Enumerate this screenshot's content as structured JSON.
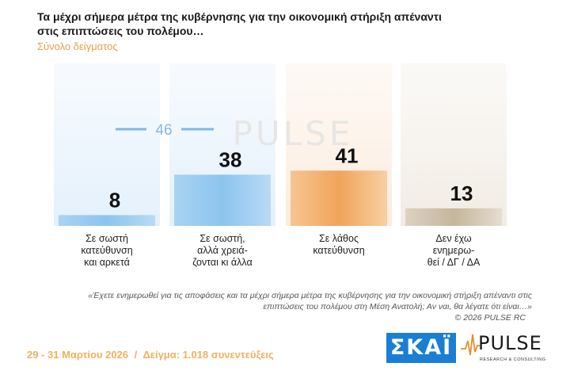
{
  "header": {
    "title": "Τα μέχρι σήμερα μέτρα της κυβέρνησης για την οικονομική στήριξη απέναντι στις επιπτώσεις του πολέμου…",
    "subtitle": "Σύνολο δείγματος"
  },
  "chart_data": {
    "type": "bar",
    "categories": [
      [
        "Σε σωστή",
        "κατεύθυνση",
        "και αρκετά"
      ],
      [
        "Σε σωστή,",
        "αλλά χρειά-",
        "ζονται κι άλλα"
      ],
      [
        "Σε λάθος",
        "κατεύθυνση"
      ],
      [
        "Δεν έχω",
        "ενημερω-",
        "θεί / ΔΓ / ΔΑ"
      ]
    ],
    "values": [
      8,
      38,
      41,
      13
    ],
    "bracket": {
      "value": 46,
      "spans": [
        0,
        1
      ]
    },
    "colors": [
      "#8cc4ee",
      "#8cc4ee",
      "#f0a45a",
      "#cdbfa8"
    ]
  },
  "note": {
    "question": "«Έχετε ενημερωθεί για τις αποφάσεις και τα μέχρι σήμερα  μέτρα της κυβέρνησης για την οικονομική στήριξη απέναντι στις επιπτώσεις του πολέμου στη Μέση Ανατολή; Αν ναι, θα λέγατε ότι είναι…»",
    "copyright": "©  2026  PULSE RC"
  },
  "footer": {
    "dates": "29 - 31  Μαρτίου 2026",
    "separator": "/",
    "sample": "Δείγμα:  1.018 συνεντεύξεις"
  },
  "logos": {
    "skai": "ΣΚΑΪ",
    "pulse": "PULSE",
    "pulse_sub": "RESEARCH & CONSULTING",
    "watermark": "PULSE"
  }
}
